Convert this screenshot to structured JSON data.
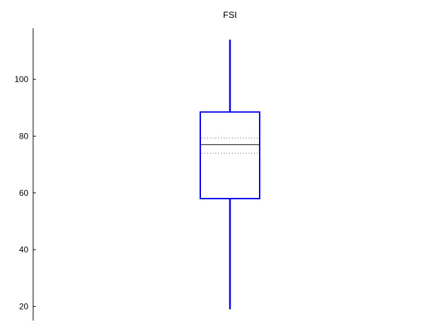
{
  "chart_data": {
    "type": "box",
    "title": "FSI",
    "xlabel": "",
    "ylabel": "",
    "ylim": [
      15,
      118
    ],
    "yticks": [
      20,
      40,
      60,
      80,
      100
    ],
    "grid": false,
    "box": {
      "min": 19,
      "q1": 58,
      "median": 77,
      "q3": 88.5,
      "max": 114,
      "notch_low": 74,
      "notch_high": 79.3
    },
    "colors": {
      "box": "#0000ee",
      "median": "#000000",
      "notch": "#555555",
      "axis": "#000000"
    }
  }
}
